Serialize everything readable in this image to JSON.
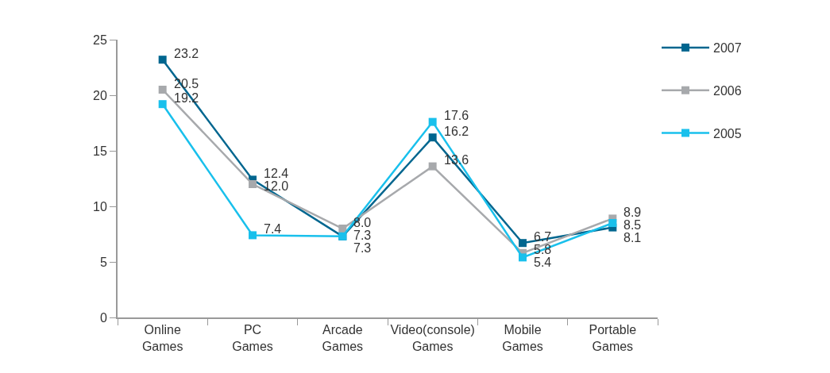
{
  "chart_data": {
    "type": "line",
    "categories": [
      "Online\nGames",
      "PC\nGames",
      "Arcade\nGames",
      "Video(console)\nGames",
      "Mobile\nGames",
      "Portable\nGames"
    ],
    "series": [
      {
        "name": "2007",
        "color": "#00668f",
        "values": [
          23.2,
          12.4,
          7.3,
          16.2,
          6.7,
          8.1
        ],
        "value_labels": [
          "23.2",
          "12.4",
          "7.3",
          "16.2",
          "6.7",
          "8.1"
        ]
      },
      {
        "name": "2006",
        "color": "#a7a9ac",
        "values": [
          20.5,
          12.0,
          8.0,
          13.6,
          5.8,
          8.9
        ],
        "value_labels": [
          "20.5",
          "12.0",
          "8.0",
          "13.6",
          "5.8",
          "8.9"
        ]
      },
      {
        "name": "2005",
        "color": "#19c0ec",
        "values": [
          19.2,
          7.4,
          7.3,
          17.6,
          5.4,
          8.5
        ],
        "value_labels": [
          "19.2",
          "7.4",
          "7.3",
          "17.6",
          "5.4",
          "8.5"
        ]
      }
    ],
    "ylim": [
      0,
      25
    ],
    "yticks": [
      0,
      5,
      10,
      15,
      20,
      25
    ],
    "legend": "top right",
    "marker": "square",
    "line_style": "solid"
  }
}
